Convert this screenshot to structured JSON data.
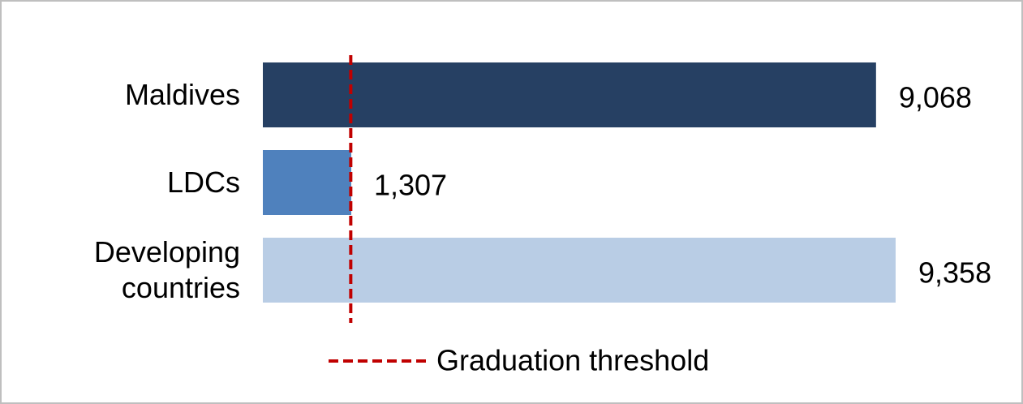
{
  "chart_data": {
    "type": "bar",
    "orientation": "horizontal",
    "categories": [
      "Maldives",
      "LDCs",
      "Developing countries"
    ],
    "series": [
      {
        "colors": [
          "#264063",
          "#4f81bd",
          "#b9cde5"
        ],
        "values": [
          9068,
          1307,
          9358
        ],
        "value_labels": [
          "9,068",
          "1,307",
          "9,358"
        ]
      }
    ],
    "threshold": {
      "name": "Graduation threshold",
      "value": 1300,
      "color": "#c00000"
    }
  }
}
